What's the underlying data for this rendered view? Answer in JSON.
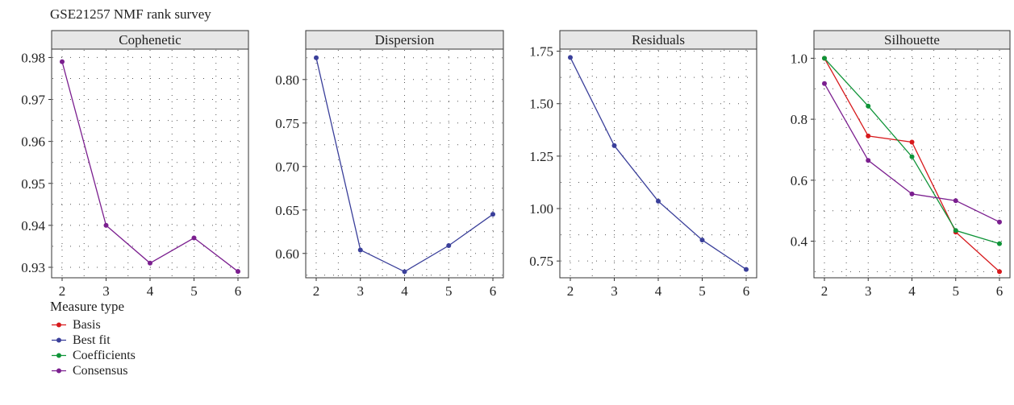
{
  "title": "GSE21257 NMF rank survey",
  "colors": {
    "Basis": "#d7191c",
    "Best fit": "#3a3f9a",
    "Coefficients": "#0f9438",
    "Consensus": "#7b1f8f"
  },
  "legend": {
    "title": "Measure type",
    "items": [
      "Basis",
      "Best fit",
      "Coefficients",
      "Consensus"
    ]
  },
  "chart_data": [
    {
      "type": "line",
      "title": "Cophenetic",
      "x": [
        2,
        3,
        4,
        5,
        6
      ],
      "ylim": [
        0.9275,
        0.982
      ],
      "yticks": [
        0.93,
        0.94,
        0.95,
        0.96,
        0.97,
        0.98
      ],
      "ytick_labels": [
        "0.93",
        "0.94",
        "0.95",
        "0.96",
        "0.97",
        "0.98"
      ],
      "series": [
        {
          "name": "Consensus",
          "values": [
            0.979,
            0.94,
            0.931,
            0.937,
            0.929
          ]
        }
      ],
      "grid": true
    },
    {
      "type": "line",
      "title": "Dispersion",
      "x": [
        2,
        3,
        4,
        5,
        6
      ],
      "ylim": [
        0.572,
        0.835
      ],
      "yticks": [
        0.6,
        0.65,
        0.7,
        0.75,
        0.8
      ],
      "ytick_labels": [
        "0.60",
        "0.65",
        "0.70",
        "0.75",
        "0.80"
      ],
      "series": [
        {
          "name": "Best fit",
          "values": [
            0.825,
            0.604,
            0.579,
            0.609,
            0.645
          ]
        }
      ],
      "grid": true
    },
    {
      "type": "line",
      "title": "Residuals",
      "x": [
        2,
        3,
        4,
        5,
        6
      ],
      "ylim": [
        0.67,
        1.76
      ],
      "yticks": [
        0.75,
        1.0,
        1.25,
        1.5,
        1.75
      ],
      "ytick_labels": [
        "0.75",
        "1.00",
        "1.25",
        "1.50",
        "1.75"
      ],
      "series": [
        {
          "name": "Best fit",
          "values": [
            1.72,
            1.3,
            1.035,
            0.85,
            0.71
          ]
        }
      ],
      "grid": true
    },
    {
      "type": "line",
      "title": "Silhouette",
      "x": [
        2,
        3,
        4,
        5,
        6
      ],
      "ylim": [
        0.28,
        1.03
      ],
      "yticks": [
        0.4,
        0.6,
        0.8,
        1.0
      ],
      "ytick_labels": [
        "0.4",
        "0.6",
        "0.8",
        "1.0"
      ],
      "series": [
        {
          "name": "Basis",
          "values": [
            1.0,
            0.745,
            0.725,
            0.43,
            0.3
          ]
        },
        {
          "name": "Coefficients",
          "values": [
            1.0,
            0.843,
            0.677,
            0.435,
            0.392
          ]
        },
        {
          "name": "Consensus",
          "values": [
            0.917,
            0.665,
            0.555,
            0.533,
            0.463
          ]
        }
      ],
      "grid": true
    }
  ]
}
